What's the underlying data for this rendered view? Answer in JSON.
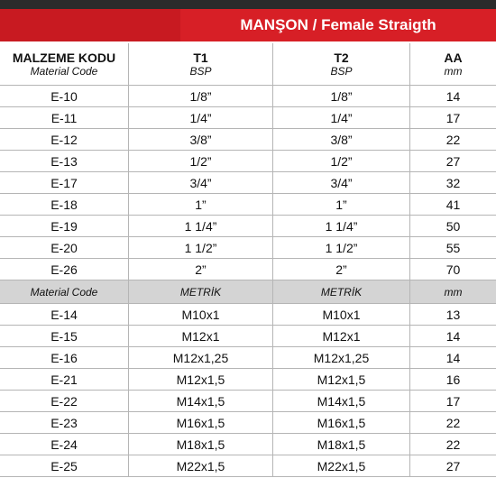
{
  "header": {
    "title": "MANŞON / Female Straigth"
  },
  "columns": [
    {
      "label": "MALZEME KODU",
      "unit": "Material Code"
    },
    {
      "label": "T1",
      "unit": "BSP"
    },
    {
      "label": "T2",
      "unit": "BSP"
    },
    {
      "label": "AA",
      "unit": "mm"
    }
  ],
  "rows": [
    [
      "E-10",
      "1/8”",
      "1/8”",
      14
    ],
    [
      "E-11",
      "1/4”",
      "1/4”",
      17
    ],
    [
      "E-12",
      "3/8”",
      "3/8”",
      22
    ],
    [
      "E-13",
      "1/2”",
      "1/2”",
      27
    ],
    [
      "E-17",
      "3/4”",
      "3/4”",
      32
    ],
    [
      "E-18",
      "1”",
      "1”",
      41
    ],
    [
      "E-19",
      "1 1/4”",
      "1 1/4”",
      50
    ],
    [
      "E-20",
      "1 1/2”",
      "1 1/2”",
      55
    ],
    [
      "E-26",
      "2”",
      "2”",
      70
    ]
  ],
  "subheader": [
    "Material Code",
    "METRİK",
    "METRİK",
    "mm"
  ],
  "metric_rows": [
    [
      "E-14",
      "M10x1",
      "M10x1",
      13
    ],
    [
      "E-15",
      "M12x1",
      "M12x1",
      14
    ],
    [
      "E-16",
      "M12x1,25",
      "M12x1,25",
      14
    ],
    [
      "E-21",
      "M12x1,5",
      "M12x1,5",
      16
    ],
    [
      "E-22",
      "M14x1,5",
      "M14x1,5",
      17
    ],
    [
      "E-23",
      "M16x1,5",
      "M16x1,5",
      22
    ],
    [
      "E-24",
      "M18x1,5",
      "M18x1,5",
      22
    ],
    [
      "E-25",
      "M22x1,5",
      "M22x1,5",
      27
    ]
  ]
}
